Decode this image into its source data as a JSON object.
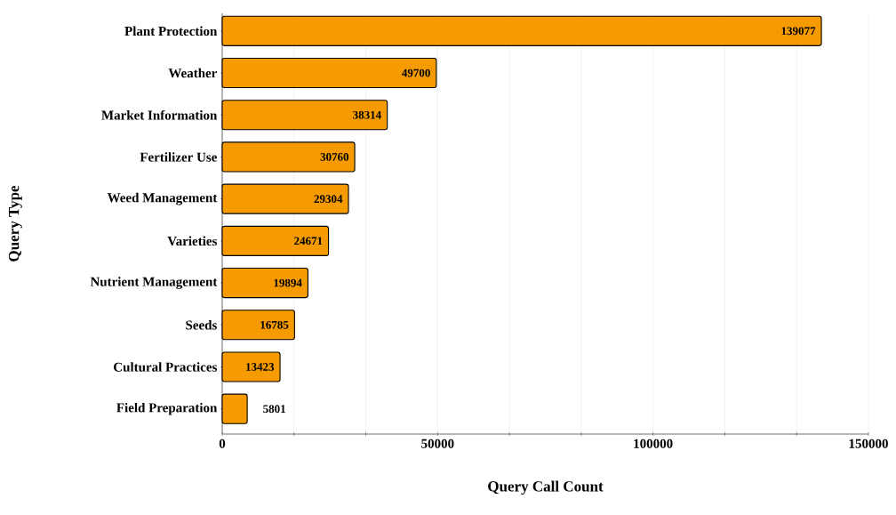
{
  "chart_data": {
    "type": "bar",
    "orientation": "horizontal",
    "xlabel": "Query Call Count",
    "ylabel": "Query Type",
    "categories": [
      "Plant Protection",
      "Weather",
      "Market Information",
      "Fertilizer Use",
      "Weed Management",
      "Varieties",
      "Nutrient Management",
      "Seeds",
      "Cultural Practices",
      "Field Preparation"
    ],
    "values": [
      139077,
      49700,
      38314,
      30760,
      29304,
      24671,
      19894,
      16785,
      13423,
      5801
    ],
    "color": "#f59b00",
    "data_labels": true,
    "grid": "x",
    "xlim": [
      0,
      150000
    ],
    "xticks": [
      0,
      {
        "value": 16666.67,
        "label": null
      },
      {
        "value": 33333.33,
        "label": null
      },
      50000,
      {
        "value": 66666.67,
        "label": null
      },
      {
        "value": 83333.33,
        "label": null
      },
      100000,
      {
        "value": 116666.67,
        "label": null
      },
      {
        "value": 133333.33,
        "label": null
      },
      150000
    ]
  }
}
